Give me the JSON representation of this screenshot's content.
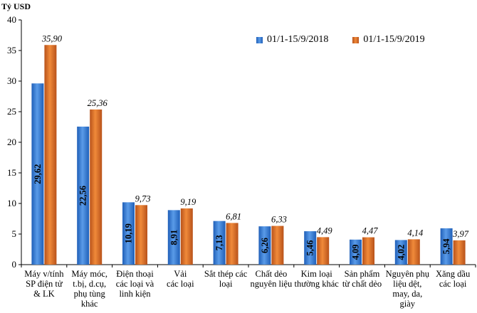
{
  "chart_data": {
    "type": "bar",
    "ylabel": "Tỷ USD",
    "ylim": [
      0,
      40
    ],
    "yticks": [
      "0",
      "5",
      "10",
      "15",
      "20",
      "25",
      "30",
      "35",
      "40"
    ],
    "grid": false,
    "legend_position": "top-right",
    "categories": [
      "Máy v/tính SP điện tử & LK",
      "Máy móc, t.bị, d.cụ, phụ tùng khác",
      "Điện thoại các loại và linh kiện",
      "Vải các loại",
      "Sắt thép các loại",
      "Chất dẻo nguyên liệu",
      "Kim loại thường khác",
      "Sản phẩm từ chất dẻo",
      "Nguyên phụ liệu dệt, may, da, giày",
      "Xăng dầu các loại"
    ],
    "series": [
      {
        "name": "01/1-15/9/2018",
        "color": "#3a7fd5",
        "values": [
          29.62,
          22.56,
          10.19,
          8.91,
          7.13,
          6.26,
          5.46,
          4.09,
          4.02,
          5.94
        ],
        "labels": [
          "29,62",
          "22,56",
          "10,19",
          "8,91",
          "7,13",
          "6,26",
          "5,46",
          "4,09",
          "4,02",
          "5,94"
        ]
      },
      {
        "name": "01/1-15/9/2019",
        "color": "#e07a2e",
        "values": [
          35.9,
          25.36,
          9.73,
          9.19,
          6.81,
          6.33,
          4.49,
          4.47,
          4.14,
          3.97
        ],
        "labels": [
          "35,90",
          "25,36",
          "9,73",
          "9,19",
          "6,81",
          "6,33",
          "4,49",
          "4,47",
          "4,14",
          "3,97"
        ]
      }
    ]
  },
  "category_lines": [
    [
      "Máy v/tính",
      "SP điện tử",
      "& LK"
    ],
    [
      "Máy móc,",
      "t.bị, d.cụ,",
      "phụ tùng",
      "khác"
    ],
    [
      "Điện thoại",
      "các loại và",
      "linh kiện"
    ],
    [
      "Vải",
      "các loại"
    ],
    [
      "Sắt thép các",
      "loại"
    ],
    [
      "Chất dẻo",
      "nguyên liệu"
    ],
    [
      "Kim loại",
      "thường khác"
    ],
    [
      "Sản phẩm",
      "từ chất dẻo"
    ],
    [
      "Nguyên phụ",
      "liệu dệt,",
      "may, da,",
      "giày"
    ],
    [
      "Xăng dầu",
      "các loại"
    ]
  ]
}
